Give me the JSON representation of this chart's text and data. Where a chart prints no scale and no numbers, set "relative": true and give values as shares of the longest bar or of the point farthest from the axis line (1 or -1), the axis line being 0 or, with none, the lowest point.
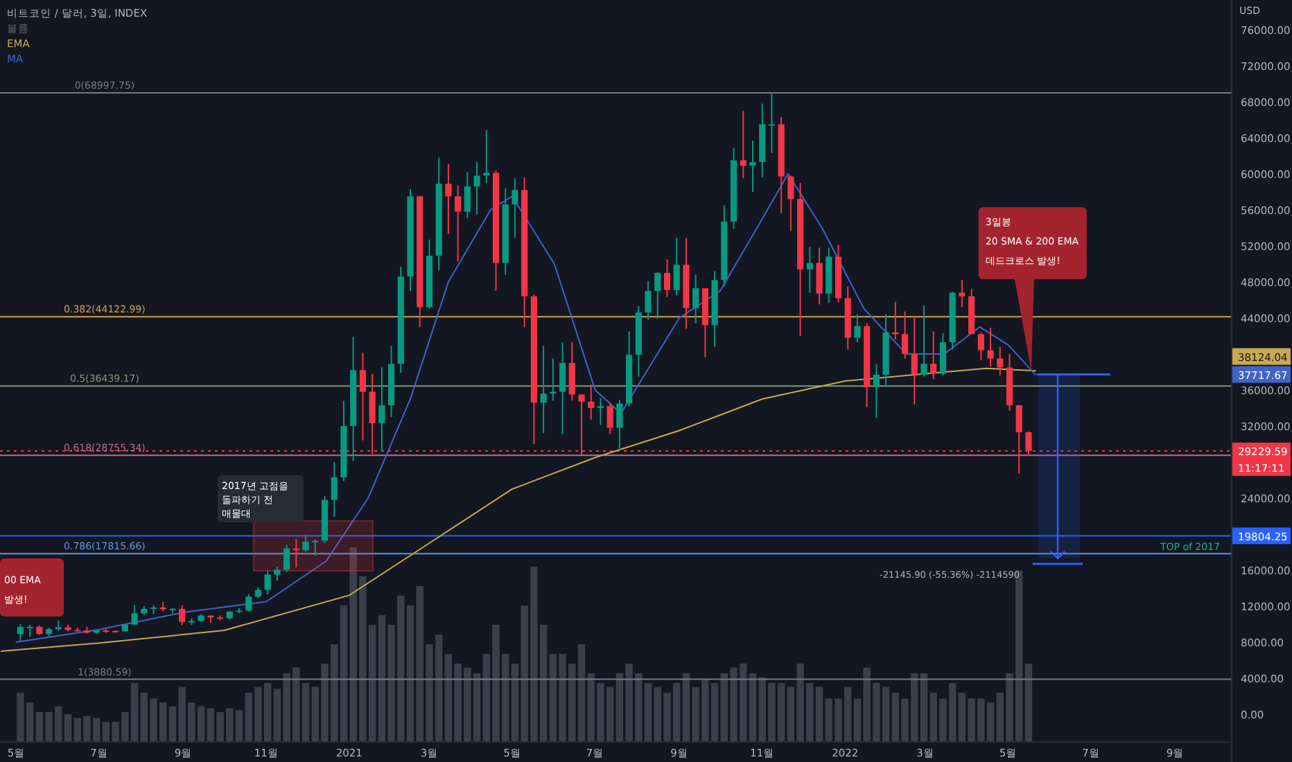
{
  "chart_data": [
    {
      "type": "candlestick",
      "title": "비트코인 / 달러, 3일, INDEX",
      "ylabel": "USD",
      "legend": "top left",
      "grid": false,
      "xlim": [
        "2020-04-19",
        "2022-10-12"
      ],
      "ylim": [
        -3000,
        79300
      ],
      "xticks": [
        {
          "value": "2020-05-01",
          "label": "5월"
        },
        {
          "value": "2020-07-01",
          "label": "7월"
        },
        {
          "value": "2020-09-01",
          "label": "9월"
        },
        {
          "value": "2020-11-01",
          "label": "11월"
        },
        {
          "value": "2021-01-01",
          "label": "2021"
        },
        {
          "value": "2021-03-01",
          "label": "3월"
        },
        {
          "value": "2021-05-01",
          "label": "5월"
        },
        {
          "value": "2021-07-01",
          "label": "7월"
        },
        {
          "value": "2021-09-01",
          "label": "9월"
        },
        {
          "value": "2021-11-01",
          "label": "11월"
        },
        {
          "value": "2022-01-01",
          "label": "2022"
        },
        {
          "value": "2022-03-01",
          "label": "3월"
        },
        {
          "value": "2022-05-01",
          "label": "5월"
        },
        {
          "value": "2022-07-01",
          "label": "7월"
        },
        {
          "value": "2022-09-01",
          "label": "9월"
        }
      ],
      "yticks": [
        {
          "value": 0,
          "label": "0.00"
        },
        {
          "value": 4000,
          "label": "4000.00"
        },
        {
          "value": 8000,
          "label": "8000.00"
        },
        {
          "value": 12000,
          "label": "12000.00"
        },
        {
          "value": 16000,
          "label": "16000.00"
        },
        {
          "value": 24000,
          "label": "24000.00"
        },
        {
          "value": 32000,
          "label": "32000.00"
        },
        {
          "value": 36000,
          "label": "36000.00"
        },
        {
          "value": 44000,
          "label": "44000.00"
        },
        {
          "value": 48000,
          "label": "48000.00"
        },
        {
          "value": 52000,
          "label": "52000.00"
        },
        {
          "value": 56000,
          "label": "56000.00"
        },
        {
          "value": 60000,
          "label": "60000.00"
        },
        {
          "value": 64000,
          "label": "64000.00"
        },
        {
          "value": 68000,
          "label": "68000.00"
        },
        {
          "value": 72000,
          "label": "72000.00"
        },
        {
          "value": 76000,
          "label": "76000.00"
        }
      ],
      "x": [
        "2020-05-04",
        "2020-05-11",
        "2020-05-18",
        "2020-05-25",
        "2020-06-01",
        "2020-06-08",
        "2020-06-15",
        "2020-06-22",
        "2020-06-29",
        "2020-07-06",
        "2020-07-13",
        "2020-07-20",
        "2020-07-27",
        "2020-08-03",
        "2020-08-10",
        "2020-08-17",
        "2020-08-24",
        "2020-08-31",
        "2020-09-07",
        "2020-09-14",
        "2020-09-21",
        "2020-09-28",
        "2020-10-05",
        "2020-10-12",
        "2020-10-19",
        "2020-10-26",
        "2020-11-02",
        "2020-11-09",
        "2020-11-16",
        "2020-11-23",
        "2020-11-30",
        "2020-12-07",
        "2020-12-14",
        "2020-12-21",
        "2020-12-28",
        "2021-01-04",
        "2021-01-11",
        "2021-01-18",
        "2021-01-25",
        "2021-02-01",
        "2021-02-08",
        "2021-02-15",
        "2021-02-22",
        "2021-03-01",
        "2021-03-08",
        "2021-03-15",
        "2021-03-22",
        "2021-03-29",
        "2021-04-05",
        "2021-04-12",
        "2021-04-19",
        "2021-04-26",
        "2021-05-03",
        "2021-05-10",
        "2021-05-17",
        "2021-05-24",
        "2021-05-31",
        "2021-06-07",
        "2021-06-14",
        "2021-06-21",
        "2021-06-28",
        "2021-07-05",
        "2021-07-12",
        "2021-07-19",
        "2021-07-26",
        "2021-08-02",
        "2021-08-09",
        "2021-08-16",
        "2021-08-23",
        "2021-08-30",
        "2021-09-06",
        "2021-09-13",
        "2021-09-20",
        "2021-09-27",
        "2021-10-04",
        "2021-10-11",
        "2021-10-18",
        "2021-10-25",
        "2021-11-01",
        "2021-11-08",
        "2021-11-15",
        "2021-11-22",
        "2021-11-29",
        "2021-12-06",
        "2021-12-13",
        "2021-12-20",
        "2021-12-27",
        "2022-01-03",
        "2022-01-10",
        "2022-01-17",
        "2022-01-24",
        "2022-01-31",
        "2022-02-07",
        "2022-02-14",
        "2022-02-21",
        "2022-02-28",
        "2022-03-07",
        "2022-03-14",
        "2022-03-21",
        "2022-03-28",
        "2022-04-04",
        "2022-04-11",
        "2022-04-18",
        "2022-04-25",
        "2022-05-02",
        "2022-05-09",
        "2022-05-16"
      ],
      "ohlc": [
        [
          8900,
          10000,
          8100,
          9700
        ],
        [
          9700,
          9900,
          8600,
          9700
        ],
        [
          9700,
          9850,
          8800,
          8900
        ],
        [
          8900,
          9600,
          8650,
          9450
        ],
        [
          9450,
          10400,
          9300,
          9650
        ],
        [
          9650,
          9950,
          9200,
          9350
        ],
        [
          9350,
          9600,
          9200,
          9300
        ],
        [
          9300,
          9700,
          8950,
          9050
        ],
        [
          9050,
          9350,
          8900,
          9300
        ],
        [
          9300,
          9450,
          9050,
          9250
        ],
        [
          9250,
          9300,
          9050,
          9200
        ],
        [
          9200,
          10000,
          9150,
          9950
        ],
        [
          9950,
          12100,
          9900,
          11200
        ],
        [
          11200,
          12000,
          11000,
          11700
        ],
        [
          11700,
          12100,
          11100,
          11850
        ],
        [
          11850,
          12450,
          11400,
          11650
        ],
        [
          11650,
          11800,
          11200,
          11700
        ],
        [
          11700,
          12100,
          9900,
          10250
        ],
        [
          10250,
          10650,
          9900,
          10350
        ],
        [
          10350,
          11100,
          10250,
          10950
        ],
        [
          10950,
          11000,
          10150,
          10750
        ],
        [
          10750,
          10950,
          10450,
          10650
        ],
        [
          10650,
          11450,
          10550,
          11400
        ],
        [
          11400,
          11750,
          11200,
          11500
        ],
        [
          11500,
          13350,
          11400,
          13050
        ],
        [
          13050,
          14100,
          12900,
          13800
        ],
        [
          13800,
          15950,
          13300,
          15500
        ],
        [
          15500,
          16400,
          14850,
          16050
        ],
        [
          16050,
          18800,
          15800,
          18400
        ],
        [
          18400,
          19450,
          16300,
          18200
        ],
        [
          18200,
          19900,
          18000,
          19150
        ],
        [
          19150,
          19400,
          17600,
          19250
        ],
        [
          19250,
          24200,
          19000,
          23800
        ],
        [
          23800,
          28000,
          21900,
          26300
        ],
        [
          26300,
          34800,
          25900,
          32000
        ],
        [
          32000,
          41900,
          28100,
          38200
        ],
        [
          38200,
          40100,
          30400,
          35800
        ],
        [
          35800,
          37800,
          28900,
          32300
        ],
        [
          32300,
          38500,
          29200,
          34300
        ],
        [
          34300,
          40900,
          33000,
          38900
        ],
        [
          38900,
          49700,
          37900,
          48600
        ],
        [
          48600,
          58300,
          47000,
          57500
        ],
        [
          57500,
          57500,
          43000,
          45200
        ],
        [
          45200,
          52700,
          45000,
          50900
        ],
        [
          50900,
          61800,
          49300,
          58900
        ],
        [
          58900,
          61100,
          53300,
          57500
        ],
        [
          57500,
          58700,
          50300,
          55800
        ],
        [
          55800,
          60200,
          55100,
          58600
        ],
        [
          58600,
          61300,
          55500,
          59800
        ],
        [
          59800,
          64850,
          59000,
          60100
        ],
        [
          60100,
          60400,
          47000,
          50100
        ],
        [
          50100,
          58400,
          48800,
          56600
        ],
        [
          56600,
          59500,
          52900,
          58200
        ],
        [
          58200,
          59600,
          43000,
          46400
        ],
        [
          46400,
          46600,
          30000,
          34600
        ],
        [
          34600,
          40900,
          31200,
          35600
        ],
        [
          35600,
          39500,
          34800,
          35800
        ],
        [
          35800,
          41300,
          31100,
          39000
        ],
        [
          39000,
          41300,
          34800,
          35500
        ],
        [
          35500,
          35500,
          28800,
          34700
        ],
        [
          34700,
          36600,
          32700,
          34000
        ],
        [
          34000,
          35100,
          32100,
          34200
        ],
        [
          34200,
          34600,
          31100,
          31800
        ],
        [
          31800,
          34900,
          29300,
          34500
        ],
        [
          34500,
          42500,
          34200,
          39900
        ],
        [
          39900,
          45300,
          37500,
          44600
        ],
        [
          44600,
          48100,
          43800,
          47000
        ],
        [
          47000,
          49100,
          43900,
          49000
        ],
        [
          49000,
          50500,
          46300,
          47100
        ],
        [
          47100,
          52900,
          46500,
          49900
        ],
        [
          49900,
          52900,
          42800,
          45100
        ],
        [
          45100,
          48800,
          43400,
          47300
        ],
        [
          47300,
          47300,
          39600,
          43200
        ],
        [
          43200,
          49200,
          40800,
          48200
        ],
        [
          48200,
          56500,
          47500,
          54700
        ],
        [
          54700,
          62900,
          53900,
          61500
        ],
        [
          61500,
          67000,
          59500,
          60900
        ],
        [
          60900,
          63700,
          58000,
          61300
        ],
        [
          61300,
          67800,
          59600,
          65500
        ],
        [
          65500,
          69000,
          62300,
          65500
        ],
        [
          65500,
          66300,
          55600,
          59700
        ],
        [
          59700,
          59800,
          53700,
          57200
        ],
        [
          57200,
          59000,
          42000,
          49400
        ],
        [
          49400,
          51900,
          46800,
          50100
        ],
        [
          50100,
          51800,
          45500,
          46700
        ],
        [
          46700,
          51800,
          45700,
          50800
        ],
        [
          50800,
          52100,
          45700,
          46200
        ],
        [
          46200,
          47500,
          40500,
          41800
        ],
        [
          41800,
          44400,
          41300,
          43100
        ],
        [
          43100,
          43400,
          34100,
          36300
        ],
        [
          36300,
          38900,
          32900,
          37700
        ],
        [
          37700,
          44400,
          36300,
          42400
        ],
        [
          42400,
          45800,
          41600,
          42200
        ],
        [
          42200,
          44700,
          39500,
          40000
        ],
        [
          40000,
          44200,
          34400,
          37700
        ],
        [
          37700,
          45400,
          37500,
          38900
        ],
        [
          38900,
          42500,
          37200,
          37800
        ],
        [
          37800,
          42300,
          37600,
          41300
        ],
        [
          41300,
          46900,
          40500,
          46800
        ],
        [
          46800,
          48200,
          45200,
          46400
        ],
        [
          46400,
          47200,
          42200,
          42200
        ],
        [
          42200,
          42400,
          39300,
          40400
        ],
        [
          40400,
          42900,
          38600,
          39500
        ],
        [
          39500,
          40800,
          37600,
          38500
        ],
        [
          38500,
          40000,
          33700,
          34300
        ],
        [
          34300,
          34300,
          26700,
          31300
        ],
        [
          31300,
          31400,
          28700,
          29229.59
        ]
      ],
      "series": [
        {
          "name": "EMA",
          "type": "line",
          "color": "#c9a94f",
          "x": [
            "2020-04-20",
            "2020-07-01",
            "2020-10-01",
            "2021-01-01",
            "2021-03-01",
            "2021-05-01",
            "2021-07-01",
            "2021-09-01",
            "2021-11-01",
            "2022-01-01",
            "2022-03-01",
            "2022-04-15",
            "2022-05-21"
          ],
          "values": [
            7000,
            7900,
            9300,
            13200,
            19000,
            25000,
            28500,
            31500,
            35000,
            37000,
            37800,
            38400,
            38124.04
          ]
        },
        {
          "name": "MA",
          "type": "line",
          "color": "#3f63c7",
          "x": [
            "2020-05-01",
            "2020-07-01",
            "2020-09-01",
            "2020-11-01",
            "2020-12-15",
            "2021-01-15",
            "2021-02-15",
            "2021-03-15",
            "2021-04-15",
            "2021-05-01",
            "2021-06-01",
            "2021-07-01",
            "2021-07-20",
            "2021-09-01",
            "2021-10-01",
            "2021-11-01",
            "2021-11-20",
            "2021-12-15",
            "2022-01-15",
            "2022-02-15",
            "2022-03-15",
            "2022-04-10",
            "2022-05-01",
            "2022-05-21"
          ],
          "values": [
            8000,
            9400,
            11300,
            12500,
            17000,
            24000,
            35000,
            48000,
            56000,
            57500,
            50000,
            36000,
            33400,
            44000,
            47000,
            55000,
            60000,
            54000,
            45000,
            40000,
            40000,
            43000,
            41000,
            37717.67
          ]
        }
      ],
      "ref_lines": [
        {
          "axis": "y",
          "value": 68997.75,
          "label": "0(68997.75)",
          "color": "#787b86"
        },
        {
          "axis": "y",
          "value": 44122.99,
          "label": "0.382(44122.99)",
          "color": "#d4a04a"
        },
        {
          "axis": "y",
          "value": 36439.17,
          "label": "0.5(36439.17)",
          "color": "#7f9a7a"
        },
        {
          "axis": "y",
          "value": 28755.34,
          "label": "0.618(28755.34)",
          "color": "#c06a8a"
        },
        {
          "axis": "y",
          "value": 17815.66,
          "label": "0.786(17815.66)",
          "color": "#5b9bd5"
        },
        {
          "axis": "y",
          "value": 3880.59,
          "label": "1(3880.59)",
          "color": "#787b86"
        },
        {
          "axis": "y",
          "value": 19804.25,
          "label": "TOP of 2017",
          "color": "#2962ff",
          "line_style": "solid"
        },
        {
          "axis": "y",
          "value": 29229.59,
          "color": "#f23645",
          "line_style": "dotted"
        }
      ],
      "annotations": [
        {
          "text": "3일봉\n20 SMA & 200 EMA\n데드크로스 발생!",
          "x": "2022-05-18",
          "y": 38150
        },
        "00 EMA\n발생!",
        "2017년 고점을\n돌파하기 전\n매물대",
        "-21145.90 (-55.36%) -2114590",
        "38124.04",
        "37717.67",
        "29229.59\n11:17:11",
        "19804.25"
      ]
    },
    {
      "type": "bar",
      "relative": true,
      "xlim": [
        "2020-04-19",
        "2022-10-12"
      ],
      "tick_labels": false,
      "x": [
        "2020-05-04",
        "2020-05-11",
        "2020-05-18",
        "2020-05-25",
        "2020-06-01",
        "2020-06-08",
        "2020-06-15",
        "2020-06-22",
        "2020-06-29",
        "2020-07-06",
        "2020-07-13",
        "2020-07-20",
        "2020-07-27",
        "2020-08-03",
        "2020-08-10",
        "2020-08-17",
        "2020-08-24",
        "2020-08-31",
        "2020-09-07",
        "2020-09-14",
        "2020-09-21",
        "2020-09-28",
        "2020-10-05",
        "2020-10-12",
        "2020-10-19",
        "2020-10-26",
        "2020-11-02",
        "2020-11-09",
        "2020-11-16",
        "2020-11-23",
        "2020-11-30",
        "2020-12-07",
        "2020-12-14",
        "2020-12-21",
        "2020-12-28",
        "2021-01-04",
        "2021-01-11",
        "2021-01-18",
        "2021-01-25",
        "2021-02-01",
        "2021-02-08",
        "2021-02-15",
        "2021-02-22",
        "2021-03-01",
        "2021-03-08",
        "2021-03-15",
        "2021-03-22",
        "2021-03-29",
        "2021-04-05",
        "2021-04-12",
        "2021-04-19",
        "2021-04-26",
        "2021-05-03",
        "2021-05-10",
        "2021-05-17",
        "2021-05-24",
        "2021-05-31",
        "2021-06-07",
        "2021-06-14",
        "2021-06-21",
        "2021-06-28",
        "2021-07-05",
        "2021-07-12",
        "2021-07-19",
        "2021-07-26",
        "2021-08-02",
        "2021-08-09",
        "2021-08-16",
        "2021-08-23",
        "2021-08-30",
        "2021-09-06",
        "2021-09-13",
        "2021-09-20",
        "2021-09-27",
        "2021-10-04",
        "2021-10-11",
        "2021-10-18",
        "2021-10-25",
        "2021-11-01",
        "2021-11-08",
        "2021-11-15",
        "2021-11-22",
        "2021-11-29",
        "2021-12-06",
        "2021-12-13",
        "2021-12-20",
        "2021-12-27",
        "2022-01-03",
        "2022-01-10",
        "2022-01-17",
        "2022-01-24",
        "2022-01-31",
        "2022-02-07",
        "2022-02-14",
        "2022-02-21",
        "2022-02-28",
        "2022-03-07",
        "2022-03-14",
        "2022-03-21",
        "2022-03-28",
        "2022-04-04",
        "2022-04-11",
        "2022-04-18",
        "2022-04-25",
        "2022-05-02",
        "2022-05-09",
        "2022-05-16"
      ],
      "series": [
        {
          "name": "볼륨",
          "color": "#5d606b",
          "values": [
            0.25,
            0.2,
            0.15,
            0.15,
            0.18,
            0.14,
            0.12,
            0.13,
            0.12,
            0.1,
            0.1,
            0.15,
            0.3,
            0.25,
            0.22,
            0.2,
            0.18,
            0.28,
            0.2,
            0.18,
            0.17,
            0.15,
            0.17,
            0.16,
            0.25,
            0.28,
            0.3,
            0.27,
            0.35,
            0.38,
            0.3,
            0.28,
            0.4,
            0.5,
            0.7,
            1.0,
            0.85,
            0.6,
            0.65,
            0.6,
            0.75,
            0.7,
            0.8,
            0.5,
            0.55,
            0.45,
            0.4,
            0.38,
            0.35,
            0.45,
            0.6,
            0.45,
            0.4,
            0.7,
            0.9,
            0.6,
            0.45,
            0.45,
            0.4,
            0.5,
            0.35,
            0.3,
            0.28,
            0.35,
            0.4,
            0.35,
            0.3,
            0.28,
            0.25,
            0.3,
            0.35,
            0.28,
            0.32,
            0.3,
            0.35,
            0.38,
            0.4,
            0.35,
            0.33,
            0.3,
            0.3,
            0.28,
            0.4,
            0.3,
            0.28,
            0.22,
            0.22,
            0.28,
            0.22,
            0.38,
            0.3,
            0.28,
            0.25,
            0.22,
            0.35,
            0.35,
            0.25,
            0.22,
            0.3,
            0.25,
            0.22,
            0.22,
            0.2,
            0.25,
            0.35,
            0.88,
            0.4
          ]
        }
      ]
    }
  ]
}
